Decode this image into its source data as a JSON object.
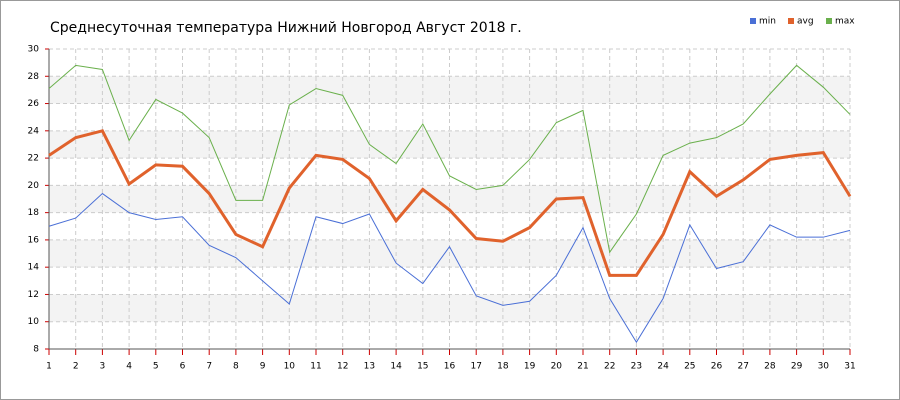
{
  "chart_data": {
    "type": "line",
    "title": "Среднесуточная температура Нижний Новгород  Август 2018 г.",
    "x": [
      1,
      2,
      3,
      4,
      5,
      6,
      7,
      8,
      9,
      10,
      11,
      12,
      13,
      14,
      15,
      16,
      17,
      18,
      19,
      20,
      21,
      22,
      23,
      24,
      25,
      26,
      27,
      28,
      29,
      30,
      31
    ],
    "series": [
      {
        "name": "min",
        "color": "#4a6fd6",
        "values": [
          17.0,
          17.6,
          19.4,
          18.0,
          17.5,
          17.7,
          15.6,
          14.7,
          13.0,
          11.3,
          17.7,
          17.2,
          17.9,
          14.3,
          12.8,
          15.5,
          11.9,
          11.2,
          11.5,
          13.4,
          16.9,
          11.7,
          8.5,
          11.7,
          17.1,
          13.9,
          14.4,
          17.1,
          16.2,
          16.2,
          16.7
        ]
      },
      {
        "name": "avg",
        "color": "#e0622c",
        "values": [
          22.2,
          23.5,
          24.0,
          20.1,
          21.5,
          21.4,
          19.4,
          16.4,
          15.5,
          19.8,
          22.2,
          21.9,
          20.5,
          17.4,
          19.7,
          18.2,
          16.1,
          15.9,
          16.9,
          19.0,
          19.1,
          13.4,
          13.4,
          16.4,
          21.0,
          19.2,
          20.4,
          21.9,
          22.2,
          22.4,
          19.2
        ]
      },
      {
        "name": "max",
        "color": "#6ab04c",
        "values": [
          27.1,
          28.8,
          28.5,
          23.3,
          26.3,
          25.3,
          23.5,
          18.9,
          18.9,
          25.9,
          27.1,
          26.6,
          23.0,
          21.6,
          24.5,
          20.7,
          19.7,
          20.0,
          21.9,
          24.6,
          25.5,
          15.1,
          17.9,
          22.2,
          23.1,
          23.5,
          24.5,
          26.7,
          28.8,
          27.2,
          25.2
        ]
      }
    ],
    "xlim": [
      1,
      31
    ],
    "xticks": [
      1,
      2,
      3,
      4,
      5,
      6,
      7,
      8,
      9,
      10,
      11,
      12,
      13,
      14,
      15,
      16,
      17,
      18,
      19,
      20,
      21,
      22,
      23,
      24,
      25,
      26,
      27,
      28,
      29,
      30,
      31
    ],
    "ylim": [
      8,
      30
    ],
    "yticks": [
      8,
      10,
      12,
      14,
      16,
      18,
      20,
      22,
      24,
      26,
      28,
      30
    ],
    "grid": true,
    "legend": "top-right"
  }
}
